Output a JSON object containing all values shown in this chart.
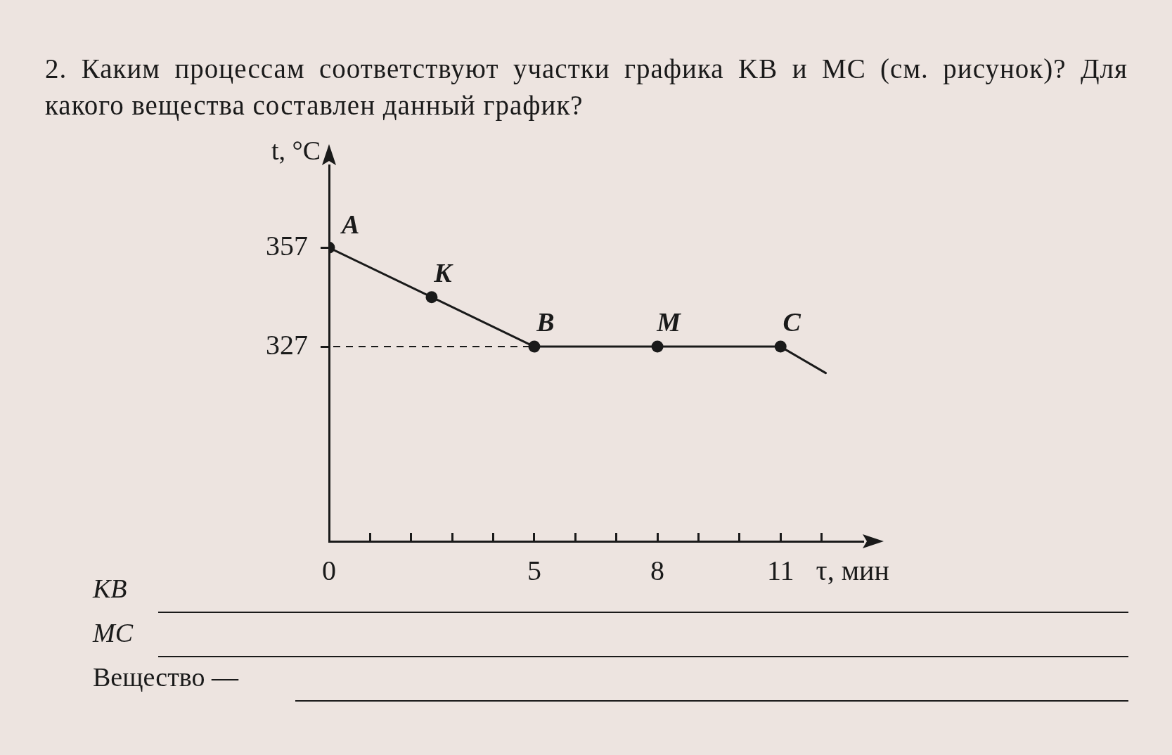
{
  "chart_data": {
    "type": "line",
    "title": "2. Каким процессам соответствуют участки графика KB и MC (см. рисунок)? Для какого вещества составлен данный график?",
    "xlabel": "τ, мин",
    "ylabel": "t, °C",
    "series": [
      {
        "type": "line",
        "color": "#1a1a1a",
        "marker": "none",
        "line_style": "solid",
        "x": [
          0,
          2.5,
          5,
          8,
          11,
          12.1
        ],
        "values": [
          357,
          342,
          327,
          327,
          327,
          319
        ]
      },
      {
        "type": "scatter",
        "color": "#1a1a1a",
        "marker": "circle",
        "x": [
          0,
          2.5,
          5,
          8,
          11
        ],
        "values": [
          357,
          342,
          327,
          327,
          327
        ]
      }
    ],
    "xlim": [
      0,
      13
    ],
    "ylim": [
      268,
      382
    ],
    "xticks": [
      0,
      {
        "value": 1,
        "label": null
      },
      {
        "value": 2,
        "label": null
      },
      {
        "value": 3,
        "label": null
      },
      {
        "value": 4,
        "label": null
      },
      5,
      {
        "value": 6,
        "label": null
      },
      {
        "value": 7,
        "label": null
      },
      8,
      {
        "value": 9,
        "label": null
      },
      {
        "value": 10,
        "label": null
      },
      11,
      {
        "value": 12,
        "label": null
      }
    ],
    "yticks": [
      327,
      357
    ],
    "ref_lines": [
      {
        "axis": "y",
        "value": 327,
        "line_style": "dashed",
        "color": "#1a1a1a"
      }
    ],
    "annotations": [
      {
        "text": "A",
        "x": 0,
        "y": 357
      },
      {
        "text": "K",
        "x": 2.5,
        "y": 342
      },
      {
        "text": "B",
        "x": 5,
        "y": 327
      },
      {
        "text": "M",
        "x": 8,
        "y": 327
      },
      {
        "text": "C",
        "x": 11,
        "y": 327
      },
      "KB",
      "MC",
      "Вещество —"
    ],
    "grid": false,
    "legend": false
  }
}
